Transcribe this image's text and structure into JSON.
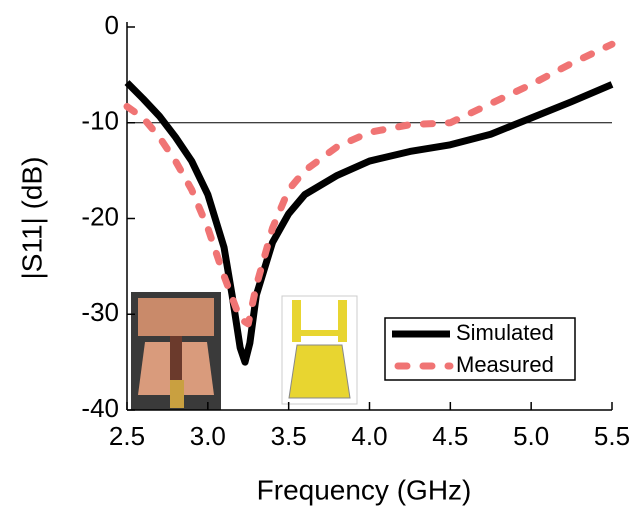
{
  "chart_data": {
    "type": "line",
    "x_label": "Frequency (GHz)",
    "y_label": "|S11| (dB)",
    "xlim": [
      2.5,
      5.5
    ],
    "ylim": [
      -40,
      0
    ],
    "xticks": [
      2.5,
      {
        "value": 3,
        "label": "3.0"
      },
      3.5,
      {
        "value": 4,
        "label": "4.0"
      },
      4.5,
      {
        "value": 5,
        "label": "5.0"
      },
      5.5
    ],
    "yticks": [
      0,
      -10,
      -20,
      -30,
      -40
    ],
    "hline": -10,
    "legend": "lower right",
    "series": [
      {
        "name": "Simulated",
        "color": "#000000",
        "style": "solid",
        "x": [
          2.5,
          2.6,
          2.7,
          2.8,
          2.9,
          3.0,
          3.1,
          3.15,
          3.2,
          3.23,
          3.26,
          3.3,
          3.4,
          3.5,
          3.6,
          3.8,
          4.0,
          4.25,
          4.5,
          4.75,
          5.0,
          5.25,
          5.5
        ],
        "values": [
          -5.8,
          -7.5,
          -9.3,
          -11.5,
          -14,
          -17.5,
          -23,
          -28,
          -33.5,
          -35,
          -33,
          -28,
          -22.5,
          -19.5,
          -17.5,
          -15.5,
          -14,
          -13,
          -12.3,
          -11.2,
          -9.5,
          -7.8,
          -6
        ]
      },
      {
        "name": "Measured",
        "color": "#f07474",
        "style": "dashed",
        "x": [
          2.5,
          2.6,
          2.7,
          2.8,
          2.9,
          3.0,
          3.1,
          3.2,
          3.25,
          3.3,
          3.4,
          3.5,
          3.6,
          3.8,
          4.0,
          4.25,
          4.5,
          4.75,
          5.0,
          5.25,
          5.5
        ],
        "values": [
          -8.3,
          -9.5,
          -11.5,
          -14,
          -17,
          -21,
          -26,
          -30.5,
          -31,
          -27,
          -21,
          -17,
          -15,
          -12.5,
          -11,
          -10.2,
          -10,
          -8,
          -6,
          -3.8,
          -1.8
        ]
      }
    ]
  }
}
